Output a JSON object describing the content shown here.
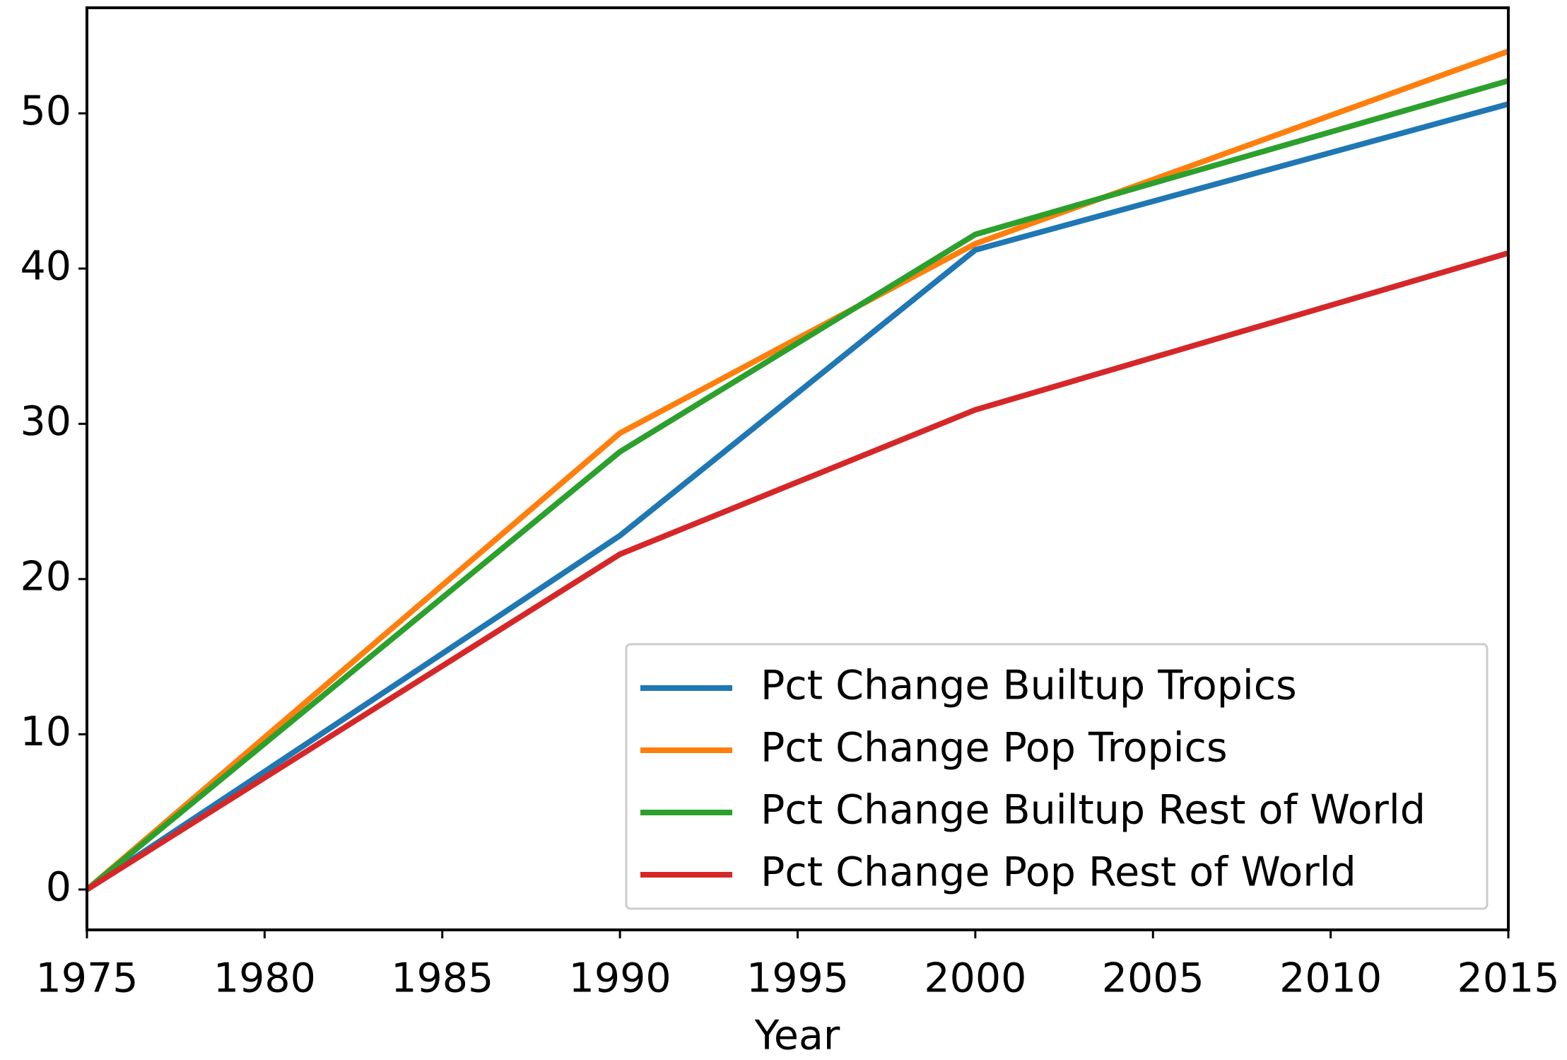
{
  "chart_data": {
    "type": "line",
    "x_label": "Year",
    "x": [
      1975,
      1990,
      2000,
      2015
    ],
    "series": [
      {
        "name": "Pct Change Builtup Tropics",
        "color": "#1f77b4",
        "values": [
          0,
          22.8,
          41.2,
          50.6
        ]
      },
      {
        "name": "Pct Change Pop Tropics",
        "color": "#ff7f0e",
        "values": [
          0,
          29.4,
          41.6,
          54.0
        ]
      },
      {
        "name": "Pct Change Builtup Rest of World",
        "color": "#2ca02c",
        "values": [
          0,
          28.2,
          42.2,
          52.1
        ]
      },
      {
        "name": "Pct Change Pop Rest of World",
        "color": "#d62728",
        "values": [
          0,
          21.6,
          30.9,
          41.0
        ]
      }
    ],
    "xlim": [
      1975,
      2015
    ],
    "xticks": [
      1975,
      1980,
      1985,
      1990,
      1995,
      2000,
      2005,
      2010,
      2015
    ],
    "ylim": [
      -2.6,
      56.8
    ],
    "yticks": [
      0,
      10,
      20,
      30,
      40,
      50
    ],
    "grid": false,
    "legend_loc": "lower right"
  }
}
